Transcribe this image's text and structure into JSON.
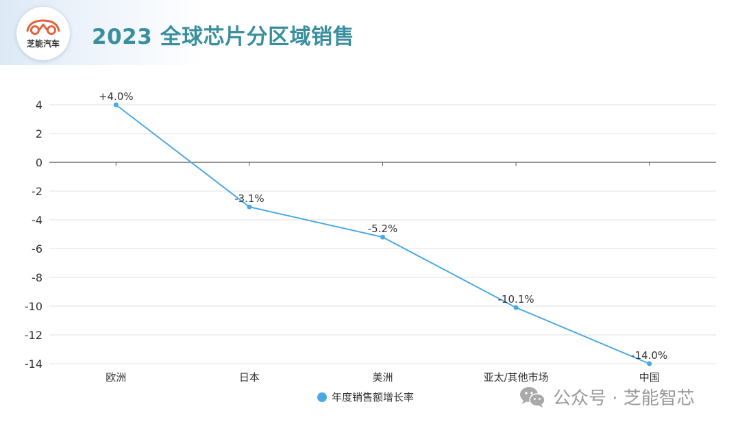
{
  "header": {
    "title": "2023 全球芯片分区域销售",
    "logo_text": "芝能汽车"
  },
  "watermark": {
    "text": "公众号 · 芝能智芯",
    "icon": "wechat-icon"
  },
  "colors": {
    "line": "#4aa8e5",
    "title": "#3a8f9e",
    "grid": "#e2e2e2"
  },
  "chart_data": {
    "type": "line",
    "title": "",
    "xlabel": "",
    "ylabel": "",
    "categories": [
      "欧洲",
      "日本",
      "美洲",
      "亚太/其他市场",
      "中国"
    ],
    "series": [
      {
        "name": "年度销售额增长率",
        "values": [
          4.0,
          -3.1,
          -5.2,
          -10.1,
          -14.0
        ],
        "labels": [
          "+4.0%",
          "-3.1%",
          "-5.2%",
          "-10.1%",
          "-14.0%"
        ]
      }
    ],
    "ylim": [
      -14,
      4
    ],
    "yticks": [
      4,
      2,
      0,
      -2,
      -4,
      -6,
      -8,
      -10,
      -12,
      -14
    ],
    "ytick_labels": [
      "4",
      "2",
      "0",
      "-2",
      "-4",
      "-6",
      "-8",
      "-10",
      "-12",
      "-14"
    ],
    "grid": true,
    "legend_position": "bottom"
  }
}
